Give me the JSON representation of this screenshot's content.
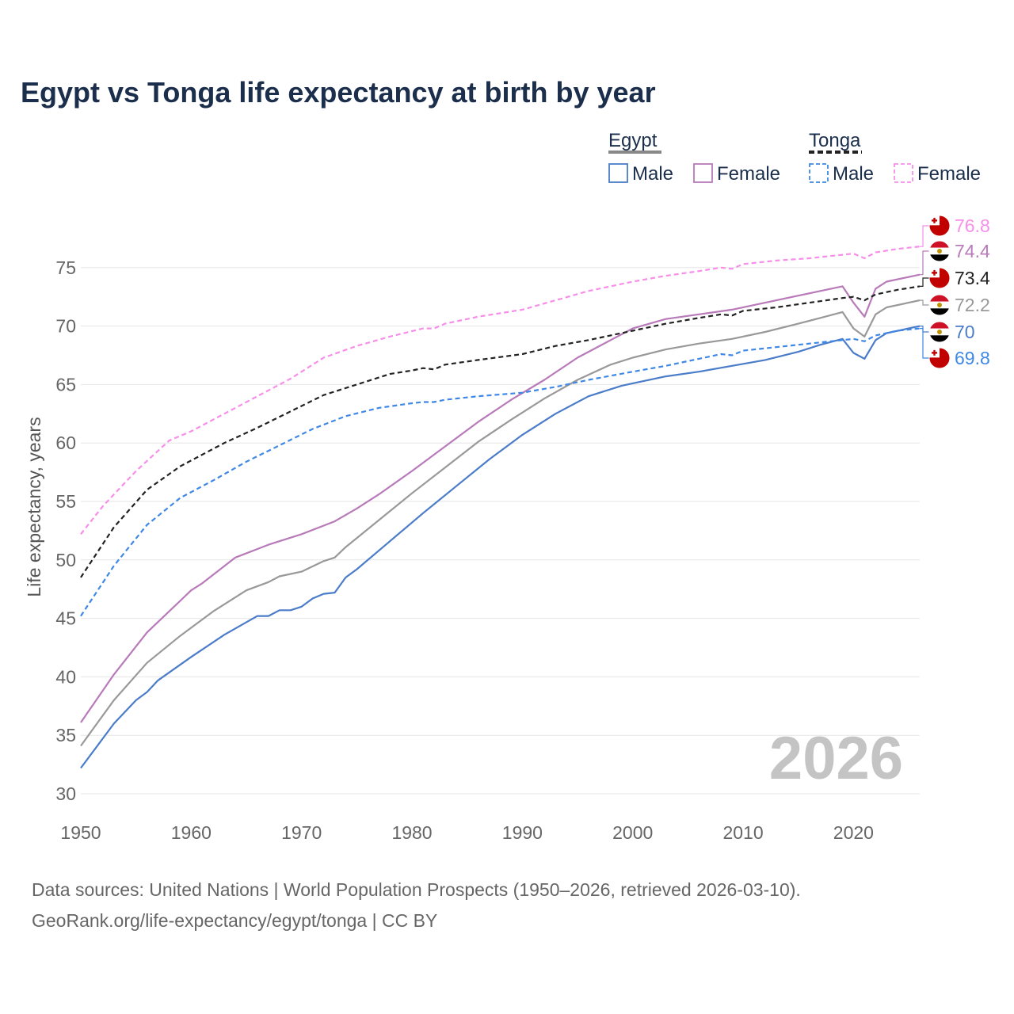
{
  "chart_data": {
    "type": "line",
    "title": "Egypt vs Tonga life expectancy at birth by year",
    "ylabel": "Life expectancy, years",
    "xlabel": "",
    "xlim": [
      1950,
      2026
    ],
    "ylim": [
      30,
      78
    ],
    "x_ticks": [
      1950,
      1960,
      1970,
      1980,
      1990,
      2000,
      2010,
      2020
    ],
    "y_ticks": [
      30,
      35,
      40,
      45,
      50,
      55,
      60,
      65,
      70,
      75
    ],
    "watermark_year": "2026",
    "legend": {
      "groups": [
        {
          "country": "Egypt",
          "style": "solid",
          "color": "#888888",
          "items": [
            {
              "label": "Male",
              "color": "#4a7cc9"
            },
            {
              "label": "Female",
              "color": "#b87ab9"
            }
          ]
        },
        {
          "country": "Tonga",
          "style": "dashed",
          "color": "#222222",
          "items": [
            {
              "label": "Male",
              "color": "#3f88e6"
            },
            {
              "label": "Female",
              "color": "#f78ee9"
            }
          ]
        }
      ]
    },
    "series": [
      {
        "name": "Tonga Female",
        "country": "Tonga",
        "flag": "tonga",
        "color": "#f78ee9",
        "dash": true,
        "end_label": "76.8",
        "points": [
          [
            1950,
            52.2
          ],
          [
            1952,
            54.6
          ],
          [
            1955,
            57.6
          ],
          [
            1958,
            60.2
          ],
          [
            1960,
            61.0
          ],
          [
            1963,
            62.5
          ],
          [
            1966,
            64.0
          ],
          [
            1969,
            65.5
          ],
          [
            1972,
            67.3
          ],
          [
            1975,
            68.3
          ],
          [
            1978,
            69.1
          ],
          [
            1981,
            69.8
          ],
          [
            1982,
            69.8
          ],
          [
            1983,
            70.2
          ],
          [
            1986,
            70.8
          ],
          [
            1990,
            71.4
          ],
          [
            1993,
            72.2
          ],
          [
            1996,
            73.0
          ],
          [
            2000,
            73.8
          ],
          [
            2003,
            74.3
          ],
          [
            2006,
            74.7
          ],
          [
            2008,
            75.0
          ],
          [
            2009,
            74.9
          ],
          [
            2010,
            75.3
          ],
          [
            2013,
            75.6
          ],
          [
            2016,
            75.8
          ],
          [
            2019,
            76.1
          ],
          [
            2020,
            76.2
          ],
          [
            2021,
            75.8
          ],
          [
            2022,
            76.3
          ],
          [
            2024,
            76.6
          ],
          [
            2026,
            76.8
          ]
        ]
      },
      {
        "name": "Egypt Female",
        "country": "Egypt",
        "flag": "egypt",
        "color": "#b87ab9",
        "dash": false,
        "end_label": "74.4",
        "points": [
          [
            1950,
            36.1
          ],
          [
            1953,
            40.2
          ],
          [
            1956,
            43.8
          ],
          [
            1959,
            46.5
          ],
          [
            1960,
            47.4
          ],
          [
            1961,
            48.0
          ],
          [
            1964,
            50.2
          ],
          [
            1967,
            51.3
          ],
          [
            1970,
            52.2
          ],
          [
            1973,
            53.3
          ],
          [
            1975,
            54.4
          ],
          [
            1977,
            55.6
          ],
          [
            1980,
            57.6
          ],
          [
            1983,
            59.7
          ],
          [
            1986,
            61.8
          ],
          [
            1989,
            63.7
          ],
          [
            1992,
            65.4
          ],
          [
            1995,
            67.3
          ],
          [
            1998,
            68.8
          ],
          [
            2000,
            69.8
          ],
          [
            2003,
            70.6
          ],
          [
            2006,
            71.0
          ],
          [
            2009,
            71.4
          ],
          [
            2012,
            72.0
          ],
          [
            2015,
            72.6
          ],
          [
            2017,
            73.0
          ],
          [
            2019,
            73.4
          ],
          [
            2020,
            72.0
          ],
          [
            2021,
            70.8
          ],
          [
            2022,
            73.2
          ],
          [
            2023,
            73.8
          ],
          [
            2026,
            74.4
          ]
        ]
      },
      {
        "name": "Tonga Total",
        "country": "Tonga",
        "flag": "tonga",
        "color": "#222222",
        "dash": true,
        "end_label": "73.4",
        "points": [
          [
            1950,
            48.5
          ],
          [
            1953,
            52.8
          ],
          [
            1956,
            56.0
          ],
          [
            1959,
            58.0
          ],
          [
            1960,
            58.5
          ],
          [
            1963,
            60.0
          ],
          [
            1966,
            61.3
          ],
          [
            1969,
            62.7
          ],
          [
            1972,
            64.1
          ],
          [
            1975,
            65.0
          ],
          [
            1978,
            65.9
          ],
          [
            1980,
            66.2
          ],
          [
            1981,
            66.4
          ],
          [
            1982,
            66.3
          ],
          [
            1983,
            66.7
          ],
          [
            1986,
            67.1
          ],
          [
            1990,
            67.6
          ],
          [
            1993,
            68.3
          ],
          [
            1996,
            68.8
          ],
          [
            2000,
            69.6
          ],
          [
            2003,
            70.2
          ],
          [
            2006,
            70.7
          ],
          [
            2008,
            71.0
          ],
          [
            2009,
            70.9
          ],
          [
            2010,
            71.3
          ],
          [
            2013,
            71.6
          ],
          [
            2016,
            72.0
          ],
          [
            2019,
            72.4
          ],
          [
            2020,
            72.5
          ],
          [
            2021,
            72.2
          ],
          [
            2022,
            72.7
          ],
          [
            2024,
            73.1
          ],
          [
            2026,
            73.4
          ]
        ]
      },
      {
        "name": "Egypt Total",
        "country": "Egypt",
        "flag": "egypt",
        "color": "#999999",
        "dash": false,
        "end_label": "72.2",
        "points": [
          [
            1950,
            34.1
          ],
          [
            1953,
            38.0
          ],
          [
            1956,
            41.2
          ],
          [
            1959,
            43.5
          ],
          [
            1962,
            45.6
          ],
          [
            1965,
            47.4
          ],
          [
            1967,
            48.1
          ],
          [
            1968,
            48.6
          ],
          [
            1970,
            49.0
          ],
          [
            1972,
            49.9
          ],
          [
            1973,
            50.2
          ],
          [
            1974,
            51.1
          ],
          [
            1977,
            53.4
          ],
          [
            1980,
            55.7
          ],
          [
            1983,
            57.9
          ],
          [
            1986,
            60.1
          ],
          [
            1989,
            62.0
          ],
          [
            1992,
            63.8
          ],
          [
            1995,
            65.4
          ],
          [
            1998,
            66.7
          ],
          [
            2000,
            67.3
          ],
          [
            2003,
            68.0
          ],
          [
            2006,
            68.5
          ],
          [
            2009,
            68.9
          ],
          [
            2012,
            69.5
          ],
          [
            2015,
            70.2
          ],
          [
            2017,
            70.7
          ],
          [
            2019,
            71.2
          ],
          [
            2020,
            69.8
          ],
          [
            2021,
            69.1
          ],
          [
            2022,
            71.0
          ],
          [
            2023,
            71.6
          ],
          [
            2026,
            72.2
          ]
        ]
      },
      {
        "name": "Egypt Male",
        "country": "Egypt",
        "flag": "egypt",
        "color": "#4a7cc9",
        "dash": false,
        "end_label": "70",
        "points": [
          [
            1950,
            32.2
          ],
          [
            1953,
            36.0
          ],
          [
            1955,
            38.0
          ],
          [
            1956,
            38.7
          ],
          [
            1957,
            39.7
          ],
          [
            1960,
            41.7
          ],
          [
            1963,
            43.6
          ],
          [
            1966,
            45.2
          ],
          [
            1967,
            45.2
          ],
          [
            1968,
            45.7
          ],
          [
            1969,
            45.7
          ],
          [
            1970,
            46.0
          ],
          [
            1971,
            46.7
          ],
          [
            1972,
            47.1
          ],
          [
            1973,
            47.2
          ],
          [
            1974,
            48.5
          ],
          [
            1975,
            49.2
          ],
          [
            1978,
            51.6
          ],
          [
            1981,
            54.0
          ],
          [
            1984,
            56.3
          ],
          [
            1987,
            58.6
          ],
          [
            1990,
            60.7
          ],
          [
            1993,
            62.5
          ],
          [
            1996,
            64.0
          ],
          [
            1999,
            64.9
          ],
          [
            2000,
            65.1
          ],
          [
            2003,
            65.7
          ],
          [
            2006,
            66.1
          ],
          [
            2009,
            66.6
          ],
          [
            2012,
            67.1
          ],
          [
            2015,
            67.8
          ],
          [
            2017,
            68.4
          ],
          [
            2019,
            68.9
          ],
          [
            2020,
            67.7
          ],
          [
            2021,
            67.2
          ],
          [
            2022,
            68.8
          ],
          [
            2023,
            69.4
          ],
          [
            2026,
            70.0
          ]
        ]
      },
      {
        "name": "Tonga Male",
        "country": "Tonga",
        "flag": "tonga",
        "color": "#3f88e6",
        "dash": true,
        "end_label": "69.8",
        "points": [
          [
            1950,
            45.2
          ],
          [
            1953,
            49.5
          ],
          [
            1956,
            53.0
          ],
          [
            1959,
            55.3
          ],
          [
            1962,
            56.8
          ],
          [
            1965,
            58.4
          ],
          [
            1968,
            59.8
          ],
          [
            1971,
            61.2
          ],
          [
            1974,
            62.3
          ],
          [
            1977,
            63.0
          ],
          [
            1980,
            63.4
          ],
          [
            1981,
            63.5
          ],
          [
            1982,
            63.5
          ],
          [
            1983,
            63.7
          ],
          [
            1986,
            64.0
          ],
          [
            1990,
            64.3
          ],
          [
            1993,
            64.8
          ],
          [
            1996,
            65.4
          ],
          [
            2000,
            66.1
          ],
          [
            2003,
            66.6
          ],
          [
            2006,
            67.2
          ],
          [
            2008,
            67.6
          ],
          [
            2009,
            67.5
          ],
          [
            2010,
            67.9
          ],
          [
            2013,
            68.2
          ],
          [
            2016,
            68.5
          ],
          [
            2019,
            68.8
          ],
          [
            2020,
            68.9
          ],
          [
            2021,
            68.7
          ],
          [
            2022,
            69.2
          ],
          [
            2024,
            69.6
          ],
          [
            2026,
            69.8
          ]
        ]
      }
    ]
  },
  "source": {
    "line1": "Data sources: United Nations | World Population Prospects (1950–2026, retrieved 2026-03-10).",
    "line2": "GeoRank.org/life-expectancy/egypt/tonga | CC BY"
  },
  "colors": {
    "title": "#1b2e4b",
    "egypt_red": "#ce1126",
    "tonga_red": "#c10000",
    "egypt_gold": "#c09300"
  }
}
